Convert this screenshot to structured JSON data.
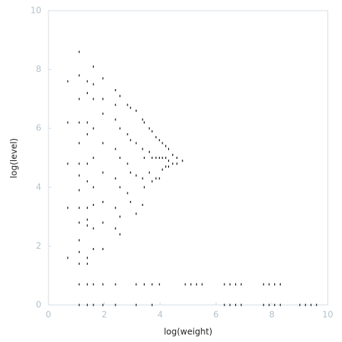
{
  "chart_data": {
    "type": "scatter",
    "x_label": "log(weight)",
    "y_label": "log(level)",
    "xlim": [
      0,
      10
    ],
    "ylim": [
      0,
      10
    ],
    "xticks": [
      0,
      2,
      4,
      6,
      8,
      10
    ],
    "yticks": [
      0,
      2,
      4,
      6,
      8,
      10
    ],
    "color": "#000000",
    "x": [
      0.69,
      0.69,
      0.69,
      0.69,
      0.69,
      1.1,
      1.1,
      1.1,
      1.1,
      1.1,
      1.1,
      1.1,
      1.1,
      1.1,
      1.1,
      1.1,
      1.1,
      1.1,
      1.1,
      1.1,
      1.39,
      1.39,
      1.39,
      1.39,
      1.39,
      1.39,
      1.39,
      1.39,
      1.39,
      1.39,
      1.39,
      1.39,
      1.39,
      1.61,
      1.61,
      1.61,
      1.61,
      1.61,
      1.61,
      1.61,
      1.61,
      1.61,
      1.61,
      1.61,
      1.95,
      1.95,
      1.95,
      1.95,
      1.95,
      1.95,
      1.95,
      1.95,
      1.95,
      1.95,
      2.4,
      2.4,
      2.4,
      2.4,
      2.4,
      2.4,
      2.4,
      2.4,
      2.4,
      2.56,
      2.56,
      2.56,
      2.56,
      2.56,
      2.56,
      2.83,
      2.83,
      2.83,
      2.83,
      2.94,
      2.94,
      2.94,
      2.94,
      3.14,
      3.14,
      3.14,
      3.14,
      3.14,
      3.14,
      3.37,
      3.37,
      3.37,
      3.37,
      3.43,
      3.43,
      3.43,
      3.43,
      3.61,
      3.61,
      3.61,
      3.71,
      3.71,
      3.71,
      3.71,
      3.71,
      3.85,
      3.85,
      3.85,
      3.97,
      3.97,
      3.97,
      3.97,
      4.08,
      4.08,
      4.08,
      4.2,
      4.2,
      4.2,
      4.3,
      4.3,
      4.3,
      4.45,
      4.45,
      4.6,
      4.6,
      4.8,
      4.9,
      5.1,
      5.3,
      5.5,
      6.3,
      6.5,
      6.7,
      6.9,
      7.7,
      7.9,
      8.1,
      8.3,
      6.3,
      6.5,
      6.7,
      6.9,
      7.7,
      7.9,
      8.1,
      8.3,
      9.0,
      9.2,
      9.4,
      9.6
    ],
    "values": [
      7.6,
      6.2,
      4.8,
      3.3,
      1.6,
      8.6,
      7.8,
      7.0,
      6.2,
      5.5,
      4.8,
      4.4,
      3.9,
      3.3,
      2.8,
      2.2,
      1.8,
      1.4,
      0.7,
      0,
      7.6,
      7.2,
      6.2,
      5.8,
      4.8,
      4.2,
      3.3,
      2.9,
      2.7,
      1.6,
      1.4,
      0.7,
      0,
      8.1,
      7.5,
      7.0,
      6.0,
      5.0,
      4.0,
      3.4,
      2.6,
      1.9,
      0.7,
      0,
      7.7,
      7.0,
      6.5,
      5.5,
      4.5,
      3.5,
      2.8,
      1.9,
      0.7,
      0,
      7.3,
      6.8,
      6.3,
      5.3,
      4.3,
      3.3,
      2.6,
      0.7,
      0,
      7.1,
      6.0,
      5.0,
      4.0,
      3.0,
      2.4,
      6.8,
      5.8,
      4.8,
      3.8,
      6.7,
      5.6,
      4.5,
      3.5,
      6.6,
      5.5,
      4.4,
      3.1,
      0.7,
      0,
      6.3,
      5.3,
      4.3,
      3.4,
      6.2,
      5.0,
      4.0,
      0.7,
      6.0,
      5.2,
      4.5,
      5.9,
      5.0,
      4.2,
      0.7,
      0,
      5.7,
      5.0,
      4.3,
      5.6,
      5.0,
      4.3,
      0.7,
      5.5,
      5.0,
      4.6,
      5.4,
      5.0,
      4.7,
      5.3,
      4.9,
      4.7,
      5.1,
      4.8,
      5.0,
      4.8,
      4.9,
      0.7,
      0.7,
      0.7,
      0.7,
      0.7,
      0.7,
      0.7,
      0.7,
      0.7,
      0.7,
      0.7,
      0.7,
      0,
      0,
      0,
      0,
      0,
      0,
      0,
      0,
      0,
      0,
      0,
      0
    ]
  }
}
